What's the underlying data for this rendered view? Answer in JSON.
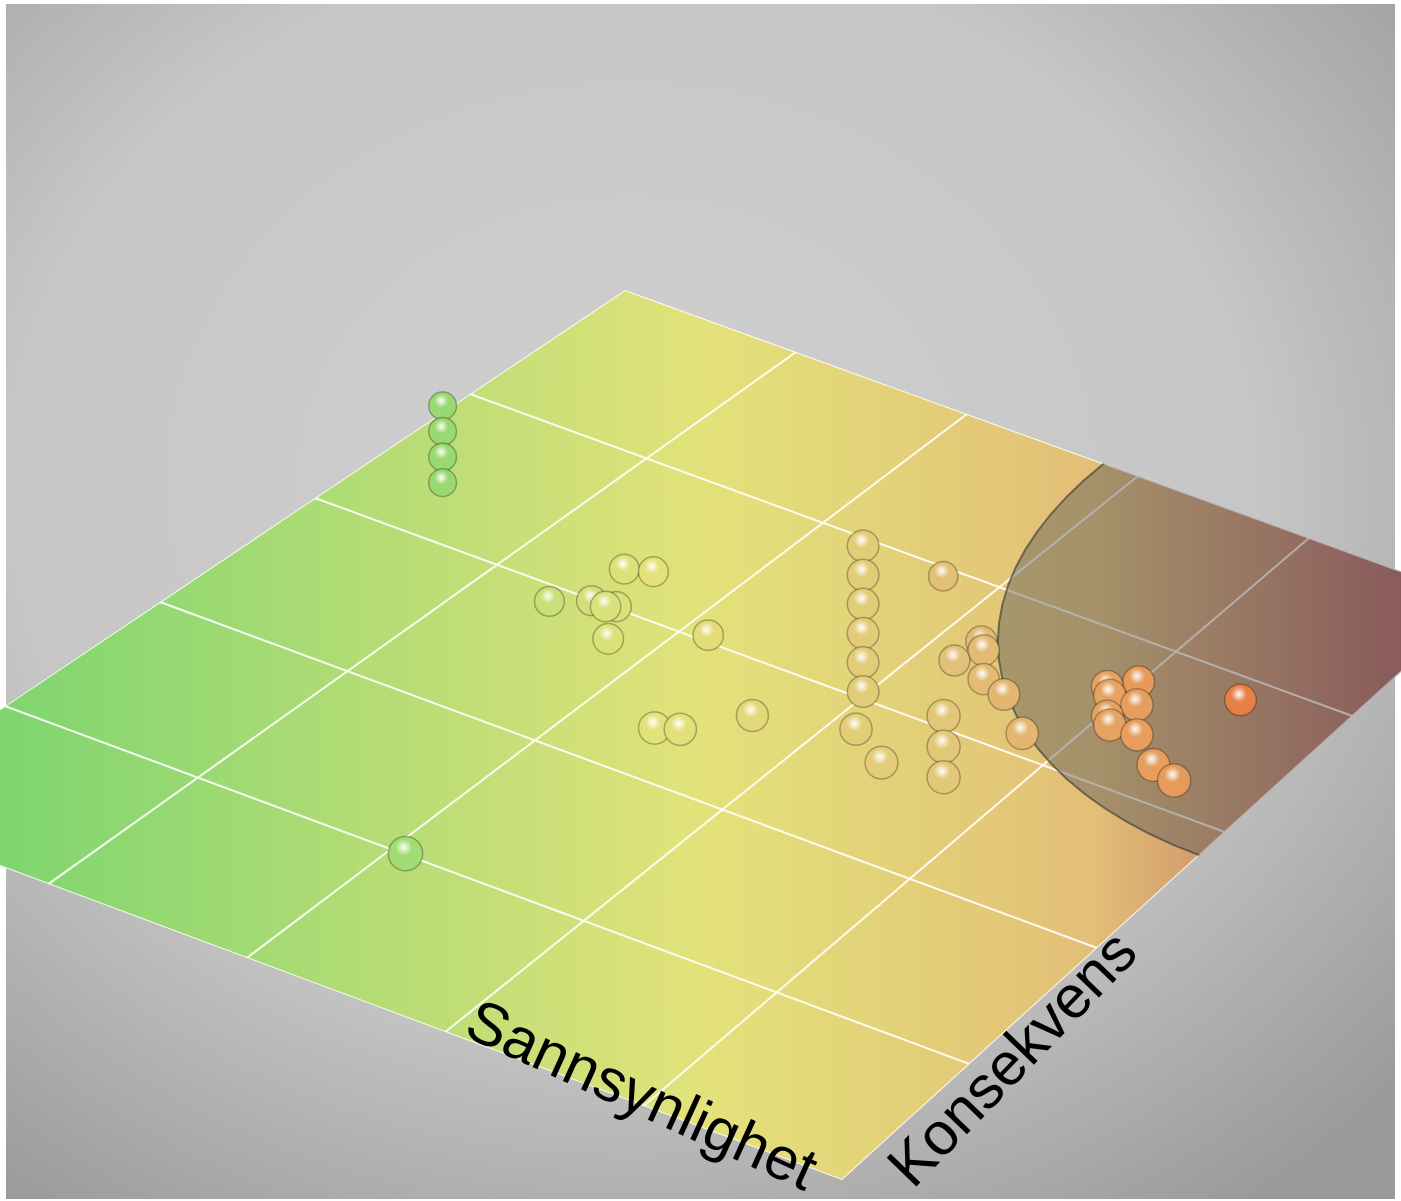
{
  "chart_data": {
    "type": "scatter",
    "xlabel": "Sannsynlighet",
    "ylabel": "Konsekvens",
    "xlim": [
      0,
      5
    ],
    "ylim": [
      0,
      5
    ],
    "grid": true,
    "colors": {
      "low": "#7ed56f",
      "mid": "#e3e27a",
      "high": "#e3bf77",
      "critical": "#b05c5c",
      "danger_zone": "#5a5a5a"
    },
    "danger_zone": {
      "center": [
        5.0,
        5.0
      ],
      "radius": 2.2
    },
    "points": [
      {
        "x": 0.45,
        "y": 3.3,
        "z": 1
      },
      {
        "x": 0.45,
        "y": 3.3,
        "z": 2
      },
      {
        "x": 0.45,
        "y": 3.3,
        "z": 3
      },
      {
        "x": 0.45,
        "y": 3.3,
        "z": 4
      },
      {
        "x": 1.45,
        "y": 2.8,
        "z": 1
      },
      {
        "x": 1.6,
        "y": 2.9,
        "z": 1
      },
      {
        "x": 1.72,
        "y": 2.92,
        "z": 1
      },
      {
        "x": 1.7,
        "y": 3.0,
        "z": 2
      },
      {
        "x": 1.82,
        "y": 3.05,
        "z": 2
      },
      {
        "x": 1.85,
        "y": 2.7,
        "z": 1
      },
      {
        "x": 1.82,
        "y": 2.72,
        "z": 2
      },
      {
        "x": 2.2,
        "y": 2.95,
        "z": 1
      },
      {
        "x": 2.8,
        "y": 3.85,
        "z": 1
      },
      {
        "x": 2.45,
        "y": 2.25,
        "z": 1
      },
      {
        "x": 2.55,
        "y": 2.3,
        "z": 1
      },
      {
        "x": 2.75,
        "y": 2.55,
        "z": 1
      },
      {
        "x": 3.05,
        "y": 2.95,
        "z": 1
      },
      {
        "x": 3.05,
        "y": 2.95,
        "z": 2
      },
      {
        "x": 3.05,
        "y": 2.95,
        "z": 3
      },
      {
        "x": 3.05,
        "y": 2.95,
        "z": 4
      },
      {
        "x": 3.05,
        "y": 2.95,
        "z": 5
      },
      {
        "x": 3.05,
        "y": 2.95,
        "z": 6
      },
      {
        "x": 3.25,
        "y": 3.35,
        "z": 1
      },
      {
        "x": 3.4,
        "y": 3.35,
        "z": 2
      },
      {
        "x": 3.45,
        "y": 3.3,
        "z": 1
      },
      {
        "x": 3.45,
        "y": 3.3,
        "z": 2
      },
      {
        "x": 3.6,
        "y": 3.25,
        "z": 1
      },
      {
        "x": 3.2,
        "y": 2.7,
        "z": 1
      },
      {
        "x": 3.45,
        "y": 2.55,
        "z": 1
      },
      {
        "x": 3.75,
        "y": 2.6,
        "z": 1
      },
      {
        "x": 3.75,
        "y": 2.6,
        "z": 2
      },
      {
        "x": 3.75,
        "y": 2.6,
        "z": 3
      },
      {
        "x": 3.85,
        "y": 3.05,
        "z": 1
      },
      {
        "x": 4.1,
        "y": 3.35,
        "z": 1
      },
      {
        "x": 4.1,
        "y": 3.35,
        "z": 2
      },
      {
        "x": 4.15,
        "y": 3.3,
        "z": 1
      },
      {
        "x": 4.15,
        "y": 3.3,
        "z": 2
      },
      {
        "x": 4.3,
        "y": 3.3,
        "z": 1
      },
      {
        "x": 4.3,
        "y": 3.3,
        "z": 2
      },
      {
        "x": 4.2,
        "y": 3.45,
        "z": 2
      },
      {
        "x": 4.55,
        "y": 3.75,
        "z": 1
      },
      {
        "x": 4.5,
        "y": 3.15,
        "z": 1
      },
      {
        "x": 4.65,
        "y": 3.1,
        "z": 1
      },
      {
        "x": 2.15,
        "y": 0.9,
        "z": 1
      }
    ]
  }
}
